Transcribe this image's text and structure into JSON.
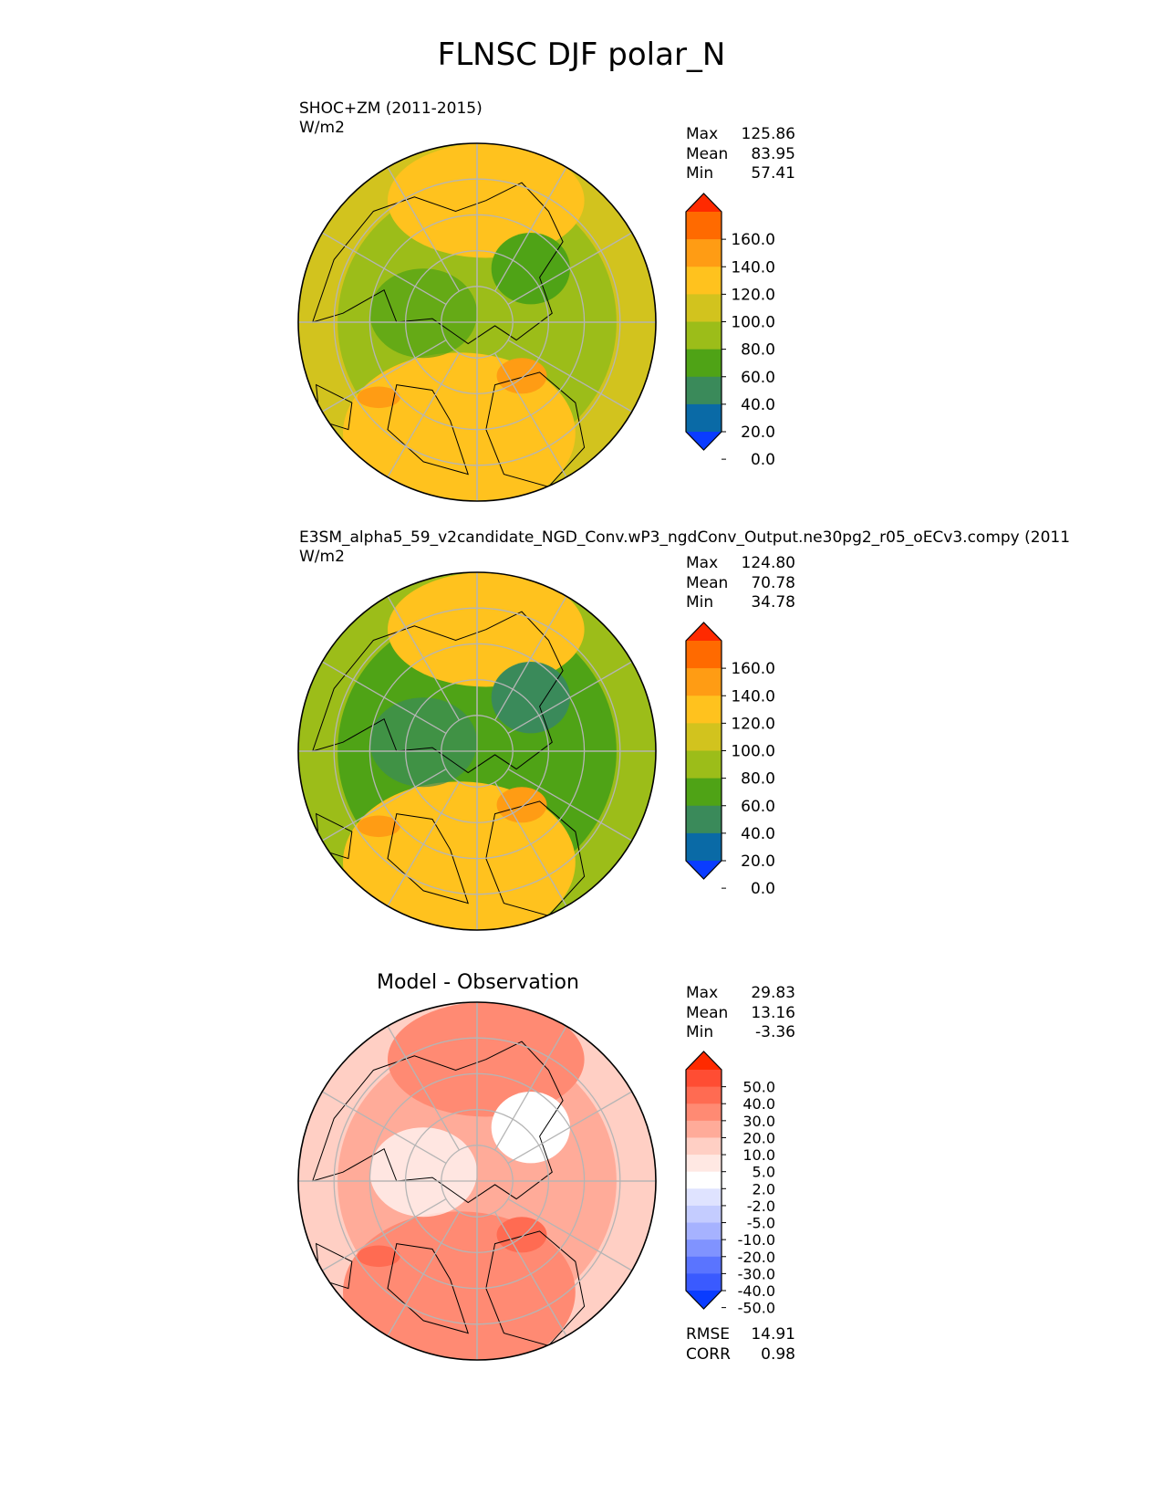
{
  "title": "FLNSC DJF polar_N",
  "panels": [
    {
      "title_line1": "SHOC+ZM (2011-2015)",
      "units": "W/m2",
      "stats": [
        {
          "label": "Max",
          "value": "125.86"
        },
        {
          "label": "Mean",
          "value": "83.95"
        },
        {
          "label": "Min",
          "value": "57.41"
        }
      ]
    },
    {
      "title_line1": "E3SM_alpha5_59_v2candidate_NGD_Conv.wP3_ngdConv_Output.ne30pg2_r05_oECv3.compy (2011",
      "units": "W/m2",
      "stats": [
        {
          "label": "Max",
          "value": "124.80"
        },
        {
          "label": "Mean",
          "value": "70.78"
        },
        {
          "label": "Min",
          "value": "34.78"
        }
      ]
    },
    {
      "center_title": "Model - Observation",
      "stats": [
        {
          "label": "Max",
          "value": "29.83"
        },
        {
          "label": "Mean",
          "value": "13.16"
        },
        {
          "label": "Min",
          "value": "-3.36"
        }
      ],
      "metrics": [
        {
          "label": "RMSE",
          "value": "14.91"
        },
        {
          "label": "CORR",
          "value": "0.98"
        }
      ]
    }
  ],
  "chart_data": [
    {
      "type": "heatmap",
      "projection": "north polar stereographic",
      "title": "SHOC+ZM (2011-2015)",
      "units": "W/m2",
      "colorbar": {
        "ticks": [
          "160.0",
          "140.0",
          "120.0",
          "100.0",
          "80.0",
          "60.0",
          "40.0",
          "20.0",
          "0.0"
        ],
        "bins": [
          "#ff2a00",
          "#ff6a00",
          "#ff9c14",
          "#ffc21e",
          "#d2c31e",
          "#9cbd19",
          "#4fa316",
          "#3a8a5a",
          "#0a6aa6",
          "#0a3cff"
        ]
      },
      "field_colors": {
        "base": "#9cbd19",
        "ring": "#d2c31e",
        "warm": "#ffc21e",
        "hot": "#ff9c14",
        "cool": "#4fa316"
      }
    },
    {
      "type": "heatmap",
      "projection": "north polar stereographic",
      "title": "E3SM_alpha5_59_v2candidate_NGD_Conv.wP3_ngdConv_Output.ne30pg2_r05_oECv3.compy (2011",
      "units": "W/m2",
      "colorbar": {
        "ticks": [
          "160.0",
          "140.0",
          "120.0",
          "100.0",
          "80.0",
          "60.0",
          "40.0",
          "20.0",
          "0.0"
        ],
        "bins": [
          "#ff2a00",
          "#ff6a00",
          "#ff9c14",
          "#ffc21e",
          "#d2c31e",
          "#9cbd19",
          "#4fa316",
          "#3a8a5a",
          "#0a6aa6",
          "#0a3cff"
        ]
      },
      "field_colors": {
        "base": "#4fa316",
        "ring": "#9cbd19",
        "warm": "#ffc21e",
        "hot": "#ff9c14",
        "cool": "#3a8a5a"
      }
    },
    {
      "type": "heatmap",
      "projection": "north polar stereographic",
      "title": "Model - Observation",
      "colorbar": {
        "ticks": [
          "50.0",
          "40.0",
          "30.0",
          "20.0",
          "10.0",
          "5.0",
          "2.0",
          "-2.0",
          "-5.0",
          "-10.0",
          "-20.0",
          "-30.0",
          "-40.0",
          "-50.0"
        ],
        "bins": [
          "#ff2a00",
          "#ff4d33",
          "#ff6b52",
          "#ff8a73",
          "#ffab99",
          "#ffcfc4",
          "#ffe8e3",
          "#ffffff",
          "#dfe3ff",
          "#c4ccff",
          "#a6b2ff",
          "#8093ff",
          "#5a74ff",
          "#3a5aff",
          "#0a3cff"
        ]
      },
      "field_colors": {
        "base": "#ffab99",
        "ring": "#ffcfc4",
        "warm": "#ff8a73",
        "hot": "#ff6b52",
        "cool": "#ffffff"
      }
    }
  ]
}
